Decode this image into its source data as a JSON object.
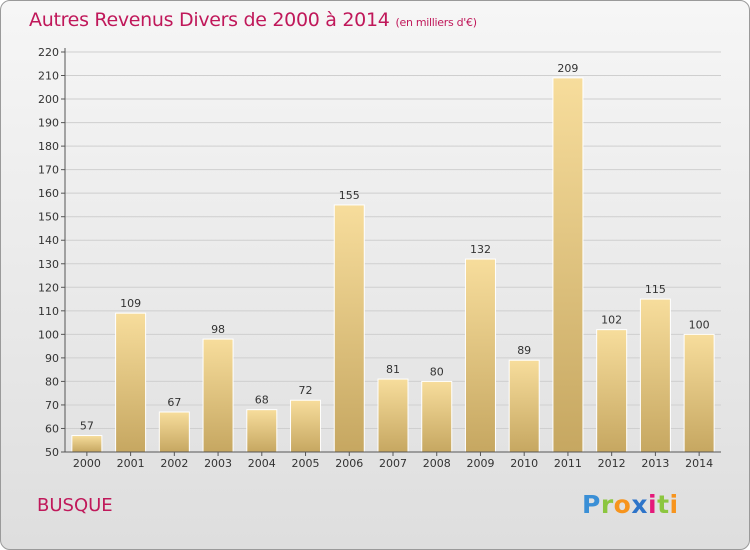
{
  "title": "Autres Revenus Divers de 2000 à 2014",
  "subtitle": "(en milliers d'€)",
  "commune": "BUSQUE",
  "logo_text": "Proxiti",
  "colors": {
    "title": "#c0185a",
    "bar_light": "#f6dc9a",
    "bar_dark": "#c8aa62",
    "axis": "#555555",
    "grid": "#cccccc"
  },
  "chart_data": {
    "type": "bar",
    "title": "Autres Revenus Divers de 2000 à 2014",
    "subtitle": "(en milliers d'€)",
    "xlabel": "",
    "ylabel": "",
    "ylim": [
      50,
      220
    ],
    "yticks": [
      50,
      60,
      70,
      80,
      90,
      100,
      110,
      120,
      130,
      140,
      150,
      160,
      170,
      180,
      190,
      200,
      210,
      220
    ],
    "grid": true,
    "categories": [
      "2000",
      "2001",
      "2002",
      "2003",
      "2004",
      "2005",
      "2006",
      "2007",
      "2008",
      "2009",
      "2010",
      "2011",
      "2012",
      "2013",
      "2014"
    ],
    "values": [
      57,
      109,
      67,
      98,
      68,
      72,
      155,
      81,
      80,
      132,
      89,
      209,
      102,
      115,
      100
    ]
  }
}
